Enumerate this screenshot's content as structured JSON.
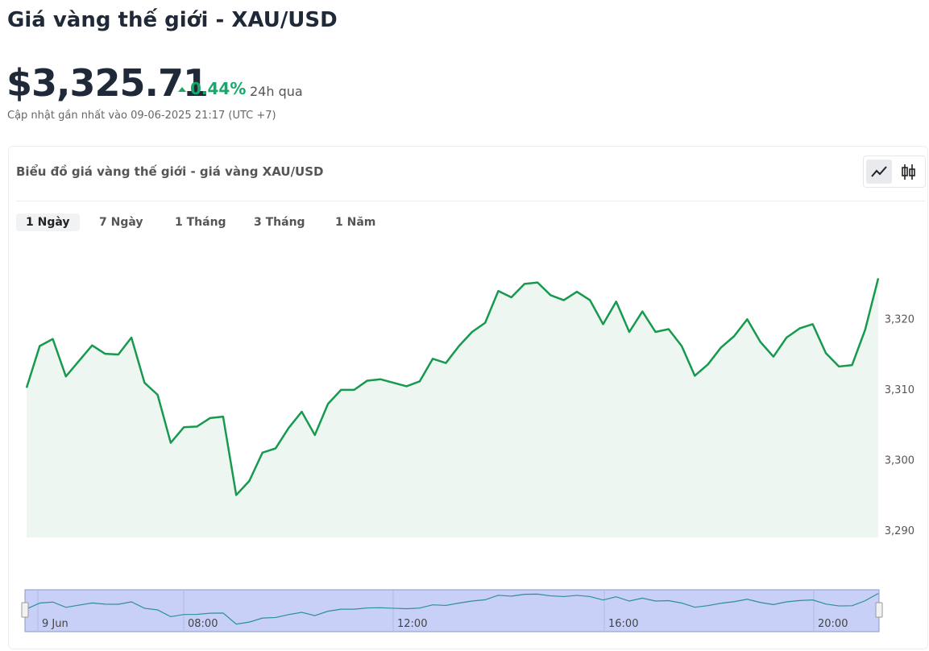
{
  "header": {
    "title": "Giá vàng thế giới - XAU/USD",
    "price": "$3,325.71",
    "change": "0.44%",
    "change_period": "24h qua",
    "updated": "Cập nhật gần nhất vào 09-06-2025 21:17 (UTC +7)"
  },
  "chart_card": {
    "title": "Biểu đồ giá vàng thế giới - giá vàng XAU/USD",
    "tabs": [
      "1 Ngày",
      "7 Ngày",
      "1 Tháng",
      "3 Tháng",
      "1 Năm"
    ],
    "active_tab": 0
  },
  "chart_data": {
    "type": "line",
    "color": "#17994f",
    "values": [
      3310.2,
      3316.1,
      3317.1,
      3311.8,
      3314.0,
      3316.2,
      3315.0,
      3314.9,
      3317.3,
      3310.9,
      3309.2,
      3302.4,
      3304.6,
      3304.7,
      3305.9,
      3306.1,
      3295.0,
      3297.0,
      3301.0,
      3301.6,
      3304.5,
      3306.8,
      3303.5,
      3307.9,
      3309.9,
      3309.9,
      3311.2,
      3311.4,
      3310.9,
      3310.4,
      3311.1,
      3314.3,
      3313.7,
      3316.1,
      3318.1,
      3319.4,
      3323.9,
      3323.0,
      3324.9,
      3325.1,
      3323.3,
      3322.6,
      3323.8,
      3322.6,
      3319.2,
      3322.4,
      3318.1,
      3321.0,
      3318.1,
      3318.5,
      3316.1,
      3311.9,
      3313.5,
      3315.9,
      3317.5,
      3319.9,
      3316.7,
      3314.6,
      3317.3,
      3318.6,
      3319.2,
      3315.1,
      3313.2,
      3313.4,
      3318.4,
      3325.7
    ],
    "ylim": [
      3289,
      3327
    ],
    "yticks": [
      {
        "value": 3290,
        "label": "3,290"
      },
      {
        "value": 3300,
        "label": "3,300"
      },
      {
        "value": 3310,
        "label": "3,310"
      },
      {
        "value": 3320,
        "label": "3,320"
      }
    ],
    "navigator_labels": [
      "9 Jun",
      "08:00",
      "12:00",
      "16:00",
      "20:00"
    ]
  }
}
